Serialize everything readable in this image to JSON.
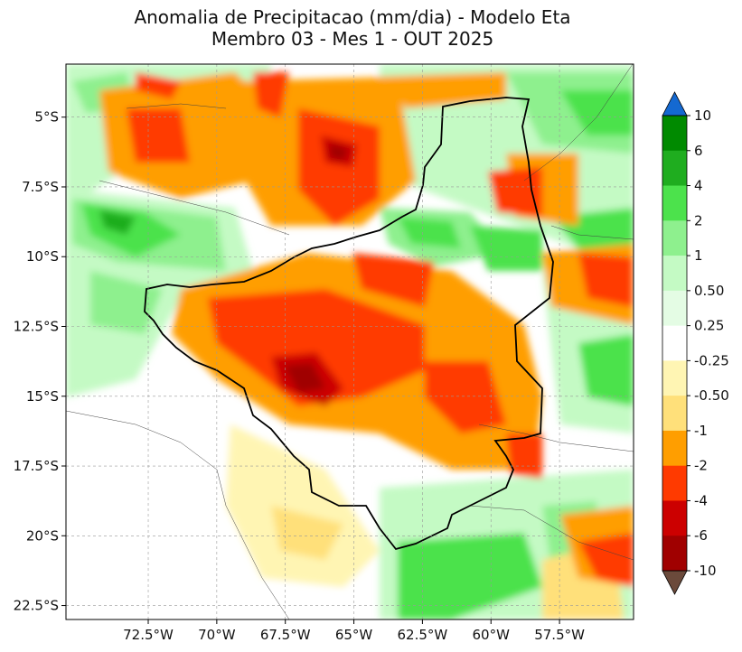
{
  "title": {
    "line1": "Anomalia de Precipitacao (mm/dia) - Modelo Eta",
    "line2": "Membro 03 - Mes 1 - OUT 2025"
  },
  "map": {
    "lon_range": [
      -75.5,
      -54.8
    ],
    "lat_range": [
      -23.0,
      -3.1
    ],
    "lon_ticks": [
      {
        "value": -72.5,
        "label": "72.5°W"
      },
      {
        "value": -70.0,
        "label": "70°W"
      },
      {
        "value": -67.5,
        "label": "67.5°W"
      },
      {
        "value": -65.0,
        "label": "65°W"
      },
      {
        "value": -62.5,
        "label": "62.5°W"
      },
      {
        "value": -60.0,
        "label": "60°W"
      },
      {
        "value": -57.5,
        "label": "57.5°W"
      }
    ],
    "lat_ticks": [
      {
        "value": -5.0,
        "label": "5°S"
      },
      {
        "value": -7.5,
        "label": "7.5°S"
      },
      {
        "value": -10.0,
        "label": "10°S"
      },
      {
        "value": -12.5,
        "label": "12.5°S"
      },
      {
        "value": -15.0,
        "label": "15°S"
      },
      {
        "value": -17.5,
        "label": "17.5°S"
      },
      {
        "value": -20.0,
        "label": "20°S"
      },
      {
        "value": -22.5,
        "label": "22.5°S"
      }
    ]
  },
  "colorbar": {
    "labels": [
      "10",
      "6",
      "4",
      "2",
      "1",
      "0.50",
      "0.25",
      "-0.25",
      "-0.50",
      "-1",
      "-2",
      "-4",
      "-6",
      "-10"
    ],
    "colors": [
      "#008a00",
      "#1fad1f",
      "#4ce24c",
      "#8ef08e",
      "#c4fac4",
      "#e4fce4",
      "#ffffff",
      "#fff5b3",
      "#ffe07a",
      "#ff9e00",
      "#ff3a00",
      "#cc0000",
      "#a00000"
    ],
    "over_color": "#1469d1",
    "under_color": "#6b4a3b"
  }
}
